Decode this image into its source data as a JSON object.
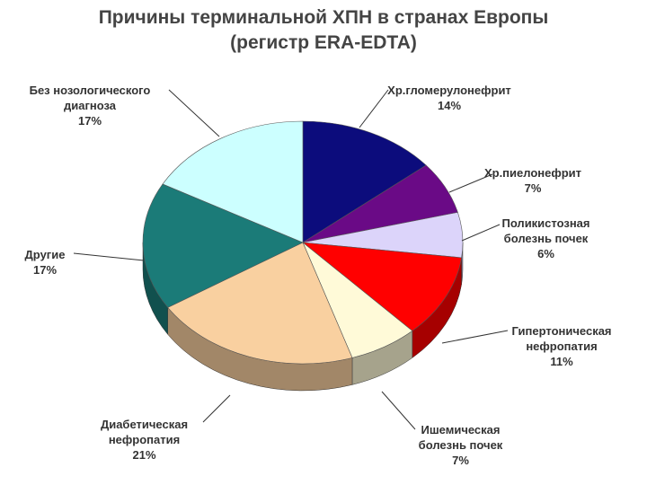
{
  "chart_data": {
    "type": "pie",
    "title": "Причины терминальной ХПН в странах Европы",
    "subtitle": "(регистр ERA-EDTA)",
    "categories": [
      "Хр.гломерулонефрит",
      "Хр.пиелонефрит",
      "Поликистозная болезнь почек",
      "Гипертоническая нефропатия",
      "Ишемическая болезнь почек",
      "Диабетическая нефропатия",
      "Другие",
      "Без нозологического диагноза"
    ],
    "values": [
      14,
      7,
      6,
      11,
      7,
      21,
      17,
      17
    ],
    "value_labels": [
      "14%",
      "7%",
      "6%",
      "11%",
      "7%",
      "21%",
      "17%",
      "17%"
    ],
    "colors": [
      "#0c0c7c",
      "#6a0a86",
      "#dcd4fa",
      "#ff0000",
      "#fffad8",
      "#f9d0a0",
      "#1b7b78",
      "#ccffff"
    ]
  }
}
